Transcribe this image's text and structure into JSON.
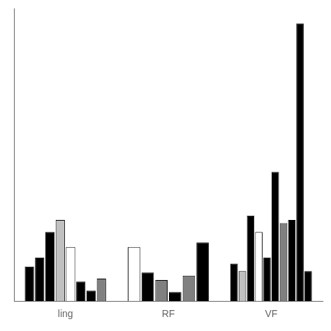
{
  "chart_data": {
    "type": "bar",
    "categories": [
      "ling",
      "RF",
      "VF"
    ],
    "series": [
      {
        "values": [
          2.3,
          3.6,
          2.5
        ],
        "colors": [
          "black",
          "white",
          "black"
        ]
      },
      {
        "values": [
          2.9,
          1.9,
          2.0
        ],
        "colors": [
          "black",
          "black",
          "#c0c0c0"
        ]
      },
      {
        "values": [
          4.6,
          1.4,
          5.7
        ],
        "colors": [
          "black",
          "#808080",
          "black"
        ]
      },
      {
        "values": [
          5.4,
          0.6,
          4.6
        ],
        "colors": [
          "#c0c0c0",
          "black",
          "white"
        ]
      },
      {
        "values": [
          3.6,
          1.7,
          2.9
        ],
        "colors": [
          "white",
          "#808080",
          "black"
        ]
      },
      {
        "values": [
          1.3,
          3.9,
          8.6
        ],
        "colors": [
          "black",
          "black",
          "black"
        ]
      },
      {
        "values": [
          0.7,
          null,
          5.2
        ],
        "colors": [
          "black",
          null,
          "#808080"
        ]
      },
      {
        "values": [
          1.5,
          null,
          5.4
        ],
        "colors": [
          "#808080",
          null,
          "black"
        ]
      },
      {
        "values": [
          null,
          null,
          18.5
        ],
        "colors": [
          null,
          null,
          "black"
        ]
      },
      {
        "values": [
          null,
          null,
          2.0
        ],
        "colors": [
          null,
          null,
          "black"
        ]
      }
    ],
    "ylim": [
      0,
      19.5
    ],
    "grid": false,
    "tick_labels": "x"
  }
}
